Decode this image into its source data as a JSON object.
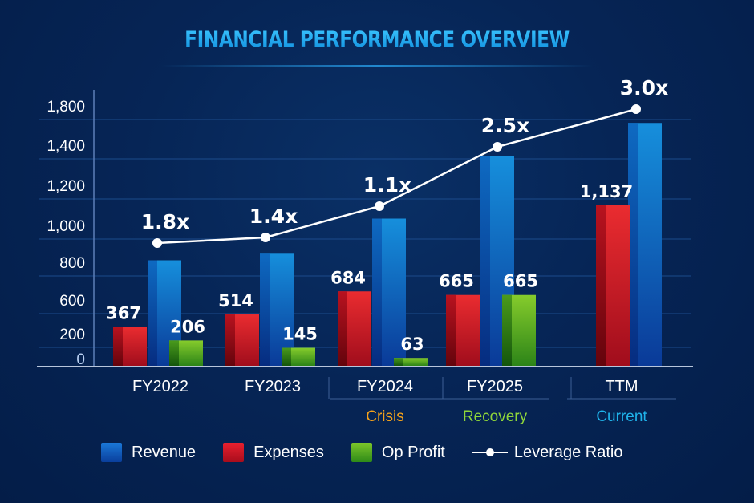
{
  "chart_data": {
    "type": "bar",
    "title": "FINANCIAL PERFORMANCE OVERVIEW",
    "xlabel": "",
    "ylabel": "",
    "categories": [
      "FY2022",
      "FY2023",
      "FY2024",
      "FY2025",
      "TTM"
    ],
    "category_sublabels": [
      {
        "text": "",
        "color": ""
      },
      {
        "text": "",
        "color": ""
      },
      {
        "text": "Crisis",
        "color": "#f5a21b"
      },
      {
        "text": "Recovery",
        "color": "#8fd63a"
      },
      {
        "text": "Current",
        "color": "#1fb3ea"
      }
    ],
    "y_ticks": [
      "1,800",
      "1,400",
      "1,200",
      "1,000",
      "800",
      "600",
      "200",
      "0"
    ],
    "y_tick_values": [
      1800,
      1400,
      1200,
      1000,
      800,
      600,
      200,
      0
    ],
    "ylim": [
      0,
      1800
    ],
    "grid": true,
    "series": [
      {
        "name": "Expenses",
        "kind": "bar",
        "color": "#e0242f",
        "values": [
          367,
          514,
          684,
          665,
          1137
        ],
        "labels": [
          "367",
          "514",
          "684",
          "665",
          "1,137"
        ]
      },
      {
        "name": "Revenue",
        "kind": "bar",
        "color": "#1470d0",
        "values": [
          850,
          890,
          1070,
          1380,
          1700
        ],
        "labels": [
          "",
          "",
          "",
          "",
          ""
        ]
      },
      {
        "name": "Op Profit",
        "kind": "bar",
        "color": "#5fb326",
        "values": [
          206,
          145,
          63,
          665,
          null
        ],
        "labels": [
          "206",
          "145",
          "63",
          "665",
          ""
        ]
      },
      {
        "name": "Leverage Ratio",
        "kind": "line",
        "color": "#ffffff",
        "values": [
          1.8,
          1.4,
          1.1,
          2.5,
          3.0
        ],
        "labels": [
          "1.8x",
          "1.4x",
          "1.1x",
          "2.5x",
          "3.0x"
        ]
      }
    ],
    "legend": {
      "position": "bottom",
      "items": [
        {
          "label": "Revenue",
          "type": "swatch",
          "color": "#1470d0"
        },
        {
          "label": "Expenses",
          "type": "swatch",
          "color": "#e0242f"
        },
        {
          "label": "Op Profit",
          "type": "swatch",
          "color": "#5fb326"
        },
        {
          "label": "Leverage Ratio",
          "type": "line",
          "color": "#ffffff"
        }
      ]
    }
  }
}
